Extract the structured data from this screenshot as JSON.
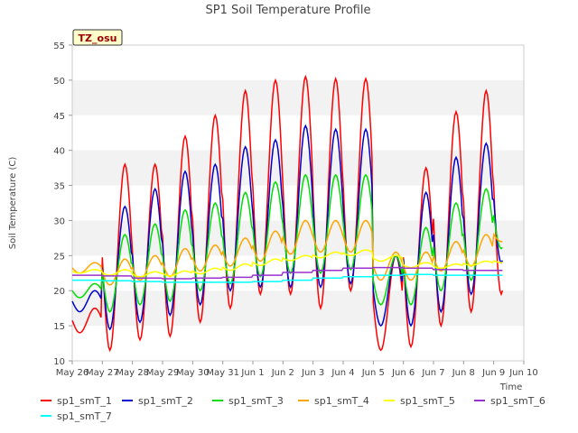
{
  "chart_data": {
    "type": "line",
    "title": "SP1 Soil Temperature Profile",
    "xlabel": "Time",
    "ylabel": "Soil Temperature (C)",
    "site_tag": "TZ_osu",
    "xlim": [
      0,
      15
    ],
    "ylim": [
      10,
      55
    ],
    "x_ticks": [
      {
        "x": 0,
        "label": "May 26"
      },
      {
        "x": 1,
        "label": "May 27"
      },
      {
        "x": 2,
        "label": "May 28"
      },
      {
        "x": 3,
        "label": "May 29"
      },
      {
        "x": 4,
        "label": "May 30"
      },
      {
        "x": 5,
        "label": "May 31"
      },
      {
        "x": 6,
        "label": "Jun 1"
      },
      {
        "x": 7,
        "label": "Jun 2"
      },
      {
        "x": 8,
        "label": "Jun 3"
      },
      {
        "x": 9,
        "label": "Jun 4"
      },
      {
        "x": 10,
        "label": "Jun 5"
      },
      {
        "x": 11,
        "label": "Jun 6"
      },
      {
        "x": 12,
        "label": "Jun 7"
      },
      {
        "x": 13,
        "label": "Jun 8"
      },
      {
        "x": 14,
        "label": "Jun 9"
      },
      {
        "x": 15,
        "label": "Jun 10"
      }
    ],
    "y_ticks": [
      10,
      15,
      20,
      25,
      30,
      35,
      40,
      45,
      50,
      55
    ],
    "grid": "horizontal bands",
    "legend_position": "bottom",
    "series": [
      {
        "name": "sp1_smT_1",
        "color": "#ff0000",
        "daily_max": [
          17.5,
          38,
          38,
          42,
          45,
          48.5,
          50,
          50.5,
          50.2,
          50.2,
          25,
          37.5,
          45.5,
          48.5,
          50
        ],
        "daily_min": [
          14,
          11.5,
          13,
          13.5,
          15.5,
          17.5,
          19.5,
          19.5,
          17.5,
          20,
          11.5,
          12,
          15,
          17,
          19.5
        ]
      },
      {
        "name": "sp1_smT_2",
        "color": "#0000cc",
        "daily_max": [
          20,
          32,
          34.5,
          37,
          38,
          40.5,
          41.5,
          43.5,
          43,
          43,
          25,
          34,
          39,
          41,
          42
        ],
        "daily_min": [
          17,
          14.5,
          15.5,
          16.5,
          18,
          20,
          20.5,
          20.5,
          20.5,
          21,
          15,
          15,
          17,
          19.5,
          24
        ]
      },
      {
        "name": "sp1_smT_3",
        "color": "#00dd00",
        "daily_max": [
          21,
          28,
          29.5,
          31.5,
          32.5,
          34,
          35.5,
          36.5,
          36.5,
          36.5,
          25,
          29,
          32.5,
          34.5,
          35.5
        ],
        "daily_min": [
          19,
          17,
          18,
          18.5,
          20,
          21,
          22,
          22.5,
          22.5,
          23,
          18,
          18,
          20,
          21.5,
          26
        ]
      },
      {
        "name": "sp1_smT_4",
        "color": "#ffa500",
        "daily_max": [
          24,
          24.5,
          25,
          26,
          26.5,
          27.5,
          28.5,
          30,
          30,
          30,
          25.5,
          25.5,
          27,
          28,
          29
        ],
        "daily_min": [
          22.5,
          20.8,
          21.5,
          22,
          22.8,
          23.5,
          24.2,
          25.2,
          25.5,
          25.5,
          21.5,
          21.5,
          22.8,
          23.5,
          27
        ]
      },
      {
        "name": "sp1_smT_5",
        "color": "#ffff00",
        "daily_max": [
          23,
          23,
          22.7,
          22.8,
          23.2,
          23.8,
          24.5,
          25,
          25.5,
          25.8,
          25,
          24,
          23.8,
          24.2,
          24.5
        ],
        "daily_min": [
          22.5,
          22.2,
          22,
          22.1,
          22.4,
          22.9,
          23.6,
          24.3,
          24.7,
          25,
          24.2,
          23.3,
          23.2,
          23.6,
          24
        ]
      },
      {
        "name": "sp1_smT_6",
        "color": "#9932cc",
        "daily_max": [
          22.2,
          22.1,
          21.8,
          21.7,
          21.8,
          21.9,
          22.2,
          22.6,
          22.9,
          23.2,
          23.3,
          23.2,
          23,
          22.9,
          22.9
        ],
        "daily_min": [
          22.2,
          22.1,
          21.8,
          21.7,
          21.8,
          21.9,
          22.2,
          22.6,
          22.9,
          23.2,
          23.3,
          23.2,
          23,
          22.9,
          22.9
        ]
      },
      {
        "name": "sp1_smT_7",
        "color": "#00ffff",
        "daily_max": [
          21.5,
          21.4,
          21.3,
          21.2,
          21.2,
          21.2,
          21.3,
          21.5,
          21.8,
          22,
          22.2,
          22.3,
          22.2,
          22.2,
          22.2
        ],
        "daily_min": [
          21.5,
          21.4,
          21.3,
          21.2,
          21.2,
          21.2,
          21.3,
          21.5,
          21.8,
          22,
          22.2,
          22.3,
          22.2,
          22.2,
          22.2
        ]
      }
    ]
  }
}
